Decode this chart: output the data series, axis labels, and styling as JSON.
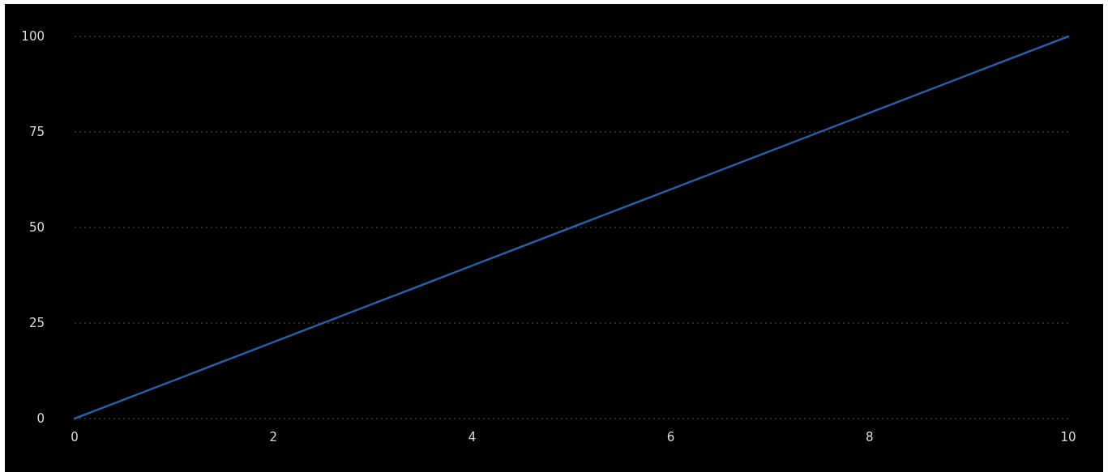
{
  "chart_data": {
    "type": "line",
    "x": [
      0,
      1,
      2,
      3,
      4,
      5,
      6,
      7,
      8,
      9,
      10
    ],
    "series": [
      {
        "color": "#2a5fa8",
        "values": [
          0,
          10,
          20,
          30,
          40,
          50,
          60,
          70,
          80,
          90,
          100
        ]
      }
    ],
    "xlim": [
      0,
      10
    ],
    "xticks": [
      0,
      2,
      4,
      6,
      8,
      10
    ],
    "ylim": [
      0,
      100
    ],
    "yticks": [
      0,
      25,
      50,
      75,
      100
    ],
    "grid": "y",
    "marker": "none",
    "line_style": "solid"
  }
}
